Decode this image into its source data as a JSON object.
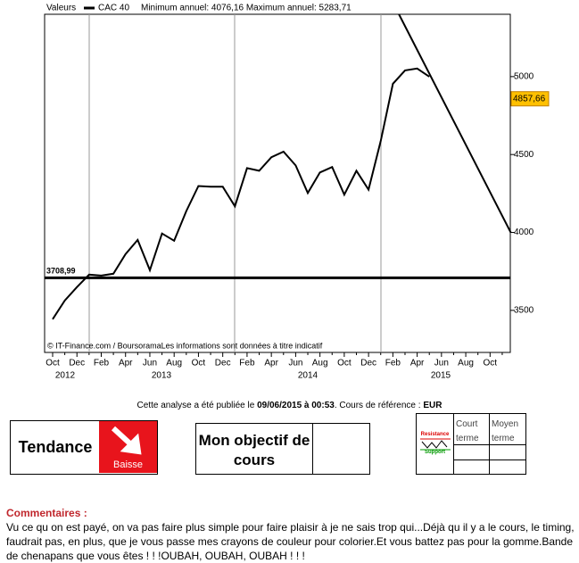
{
  "chart_data": {
    "type": "line",
    "header": "Valeurs",
    "subtitle": "Minimum annuel: 4076,16 Maximum annuel: 5283,71",
    "source": "© IT-Finance.com / BoursoramaLes informations sont données à titre indicatif",
    "categories": [
      "Oct",
      null,
      "Dec",
      null,
      "Feb",
      null,
      "Apr",
      null,
      "Jun",
      null,
      "Aug",
      null,
      "Oct",
      null,
      "Dec",
      null,
      "Feb",
      null,
      "Apr",
      null,
      "Jun",
      null,
      "Aug",
      null,
      "Oct",
      null,
      "Dec",
      null,
      "Feb",
      null,
      "Apr",
      null,
      "Jun",
      null,
      "Aug",
      null,
      "Oct",
      null
    ],
    "years": [
      "2012",
      "2013",
      "2014",
      "2015"
    ],
    "series": [
      {
        "name": "CAC 40",
        "color": "#000000",
        "values": [
          3443,
          3563,
          3649,
          3729,
          3723,
          3735,
          3861,
          3952,
          3758,
          3993,
          3947,
          4137,
          4298,
          4293,
          4293,
          4168,
          4413,
          4396,
          4483,
          4518,
          4430,
          4253,
          4385,
          4420,
          4242,
          4396,
          4275,
          4585,
          4954,
          5040,
          5052,
          5000,
          null,
          null,
          null,
          null,
          null,
          null
        ]
      }
    ],
    "support": {
      "value": 3708.99,
      "label": "3708,99"
    },
    "trendline": {
      "x": [
        28.5,
        37.7
      ],
      "values": [
        5400,
        4000
      ]
    },
    "last_value": {
      "value": 4857.66,
      "label": "4857,66"
    },
    "ylim": [
      3230,
      5400
    ],
    "yticks": [
      3500,
      4000,
      4500,
      5000
    ],
    "grid": false
  },
  "footer": {
    "published": [
      "Cette analyse a été publiée le ",
      "09/06/2015 à 00:53",
      ". Cours de référence : ",
      "EUR"
    ],
    "tendance": {
      "label": "Tendance",
      "value": "Baisse"
    },
    "objectif": "Mon objectif de cours",
    "table": {
      "icon_top": "Resistance",
      "icon_bottom": "Support",
      "headers": [
        "Court terme",
        "Moyen terme"
      ]
    },
    "comments_title": "Commentaires :",
    "comments": "Vu ce qu on est payé, on va pas faire plus simple pour faire plaisir à je ne sais trop qui...Déjà qu il y a le cours, le timing, faudrait pas, en plus, que je vous passe mes crayons de couleur pour colorier.Et vous battez pas pour la gomme.Bande de chenapans que vous êtes ! ! !OUBAH, OUBAH, OUBAH ! ! !"
  }
}
